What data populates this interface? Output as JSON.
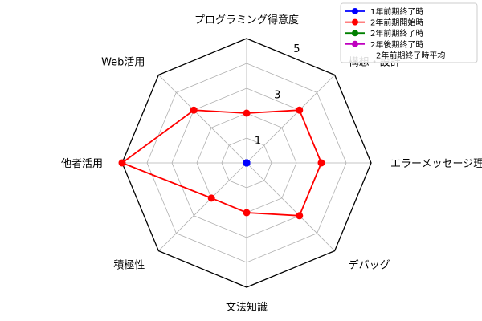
{
  "chart_data": {
    "type": "radar",
    "axes": [
      "プログラミング得意度",
      "構想・設計",
      "エラーメッセージ理解",
      "デバッグ",
      "文法知識",
      "積極性",
      "他者活用",
      "Web活用"
    ],
    "rlim": [
      0,
      5
    ],
    "rticks": [
      1,
      3,
      5
    ],
    "grid": true,
    "legend_position": "top-right",
    "series": [
      {
        "name": "1年前期終了時",
        "color": "#0000ff",
        "values": [
          0,
          0,
          0,
          0,
          0,
          0,
          0,
          0
        ]
      },
      {
        "name": "2年前期開始時",
        "color": "#ff0000",
        "values": [
          2,
          3,
          3,
          3,
          2,
          2,
          5,
          3
        ]
      },
      {
        "name": "2年前期終了時",
        "color": "#008000",
        "values": [
          0,
          0,
          0,
          0,
          0,
          0,
          0,
          0
        ]
      },
      {
        "name": "2年後期終了時",
        "color": "#bf00bf",
        "values": [
          0,
          0,
          0,
          0,
          0,
          0,
          0,
          0
        ]
      },
      {
        "name": "2年前期終了時平均",
        "color": "#ffffff",
        "values": []
      }
    ]
  }
}
